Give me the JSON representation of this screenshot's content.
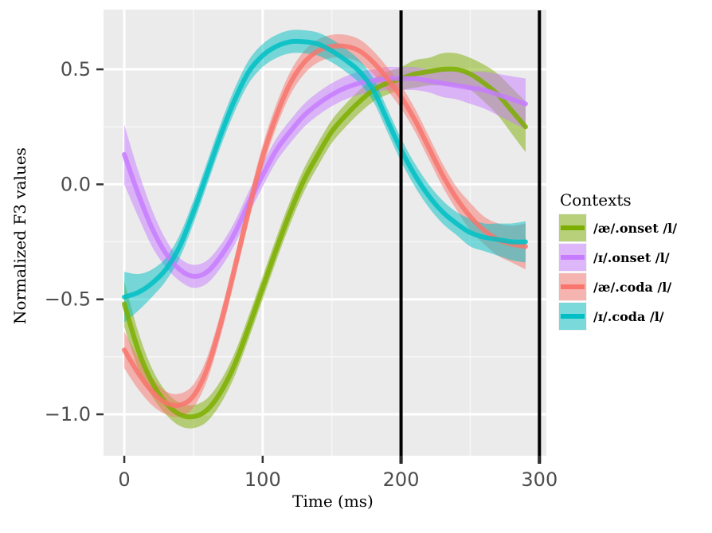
{
  "chart_data": {
    "type": "line",
    "title": "",
    "xlabel": "Time (ms)",
    "ylabel": "Normalized F3 values",
    "xlim": [
      -15,
      305
    ],
    "ylim": [
      -1.18,
      0.76
    ],
    "x_ticks": [
      0,
      100,
      200,
      300
    ],
    "x_tick_labels": [
      "0",
      "100",
      "200",
      "300"
    ],
    "y_ticks": [
      -1.0,
      -0.5,
      0.0,
      0.5
    ],
    "y_tick_labels": [
      "−1.0",
      "−0.5",
      "0.0",
      "0.5"
    ],
    "grid": true,
    "legend": {
      "title": "Contexts",
      "position": "right"
    },
    "vertical_lines": [
      200,
      300
    ],
    "x": [
      0,
      10,
      20,
      30,
      40,
      50,
      60,
      70,
      80,
      90,
      100,
      110,
      120,
      130,
      140,
      150,
      160,
      170,
      180,
      190,
      200,
      210,
      220,
      230,
      240,
      250,
      260,
      270,
      280,
      290
    ],
    "series": [
      {
        "name": "/æ/.onset /l/",
        "color": "#7CAE00",
        "values": [
          -0.52,
          -0.72,
          -0.86,
          -0.95,
          -1.0,
          -1.01,
          -0.98,
          -0.9,
          -0.78,
          -0.62,
          -0.45,
          -0.28,
          -0.12,
          0.02,
          0.13,
          0.23,
          0.3,
          0.36,
          0.41,
          0.44,
          0.46,
          0.48,
          0.49,
          0.5,
          0.5,
          0.48,
          0.44,
          0.39,
          0.32,
          0.25
        ],
        "band": [
          0.1,
          0.08,
          0.06,
          0.05,
          0.05,
          0.05,
          0.05,
          0.05,
          0.05,
          0.05,
          0.05,
          0.05,
          0.05,
          0.05,
          0.05,
          0.05,
          0.05,
          0.05,
          0.05,
          0.05,
          0.05,
          0.06,
          0.06,
          0.07,
          0.07,
          0.07,
          0.08,
          0.09,
          0.1,
          0.11
        ]
      },
      {
        "name": "/ɪ/.onset /l/",
        "color": "#C77CFF",
        "values": [
          0.13,
          -0.04,
          -0.19,
          -0.3,
          -0.37,
          -0.4,
          -0.38,
          -0.31,
          -0.21,
          -0.08,
          0.04,
          0.15,
          0.23,
          0.3,
          0.35,
          0.39,
          0.42,
          0.44,
          0.45,
          0.46,
          0.46,
          0.46,
          0.45,
          0.44,
          0.43,
          0.42,
          0.41,
          0.39,
          0.37,
          0.35
        ],
        "band": [
          0.13,
          0.1,
          0.08,
          0.06,
          0.05,
          0.05,
          0.05,
          0.05,
          0.05,
          0.05,
          0.05,
          0.05,
          0.05,
          0.05,
          0.05,
          0.05,
          0.05,
          0.05,
          0.05,
          0.05,
          0.05,
          0.05,
          0.05,
          0.06,
          0.06,
          0.07,
          0.08,
          0.09,
          0.1,
          0.11
        ]
      },
      {
        "name": "/æ/.coda /l/",
        "color": "#F8766D",
        "values": [
          -0.72,
          -0.82,
          -0.9,
          -0.95,
          -0.96,
          -0.92,
          -0.8,
          -0.6,
          -0.36,
          -0.11,
          0.12,
          0.3,
          0.44,
          0.53,
          0.58,
          0.6,
          0.6,
          0.58,
          0.53,
          0.46,
          0.38,
          0.28,
          0.16,
          0.04,
          -0.06,
          -0.14,
          -0.2,
          -0.24,
          -0.26,
          -0.27
        ],
        "band": [
          0.08,
          0.07,
          0.06,
          0.05,
          0.05,
          0.05,
          0.05,
          0.05,
          0.05,
          0.05,
          0.05,
          0.05,
          0.05,
          0.05,
          0.05,
          0.05,
          0.05,
          0.05,
          0.05,
          0.05,
          0.05,
          0.05,
          0.05,
          0.05,
          0.05,
          0.06,
          0.06,
          0.07,
          0.08,
          0.1
        ]
      },
      {
        "name": "/ɪ/.coda /l/",
        "color": "#00BFC4",
        "values": [
          -0.49,
          -0.47,
          -0.43,
          -0.37,
          -0.27,
          -0.12,
          0.05,
          0.22,
          0.37,
          0.49,
          0.56,
          0.6,
          0.62,
          0.62,
          0.61,
          0.58,
          0.54,
          0.49,
          0.41,
          0.28,
          0.15,
          0.04,
          -0.05,
          -0.12,
          -0.17,
          -0.21,
          -0.23,
          -0.24,
          -0.25,
          -0.25
        ],
        "band": [
          0.11,
          0.08,
          0.06,
          0.05,
          0.05,
          0.05,
          0.05,
          0.05,
          0.05,
          0.05,
          0.05,
          0.05,
          0.05,
          0.05,
          0.05,
          0.05,
          0.05,
          0.05,
          0.05,
          0.05,
          0.05,
          0.05,
          0.05,
          0.05,
          0.05,
          0.06,
          0.06,
          0.07,
          0.08,
          0.09
        ]
      }
    ]
  }
}
